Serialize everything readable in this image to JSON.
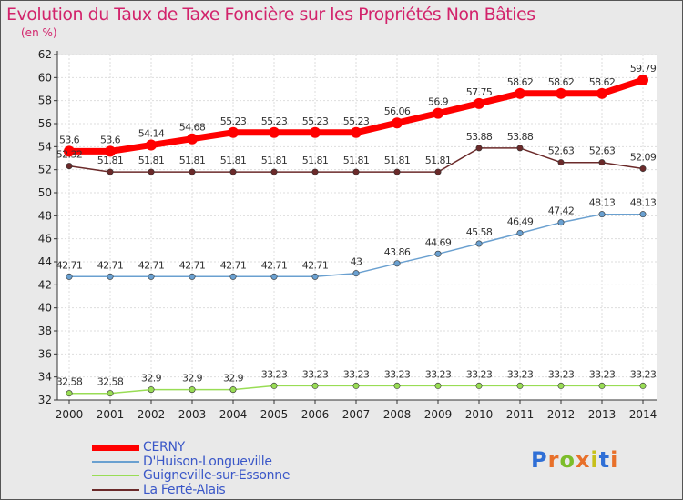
{
  "header": {
    "title": "Evolution du Taux de Taxe Foncière sur les Propriétés Non Bâties",
    "subtitle": "(en %)"
  },
  "logo": {
    "letters": [
      "P",
      "r",
      "o",
      "x",
      "i",
      "t",
      "i"
    ],
    "colors": [
      "#2f6fd6",
      "#e8702a",
      "#7cbd2a",
      "#e8702a",
      "#c7c01a",
      "#2f6fd6",
      "#e8702a"
    ]
  },
  "chart_data": {
    "type": "line",
    "title": "Evolution du Taux de Taxe Foncière sur les Propriétés Non Bâties",
    "ylabel": "(en %)",
    "ylim": [
      32,
      62
    ],
    "yticks": [
      32,
      34,
      36,
      38,
      40,
      42,
      44,
      46,
      48,
      50,
      52,
      54,
      56,
      58,
      60,
      62
    ],
    "x": [
      2000,
      2001,
      2002,
      2003,
      2004,
      2005,
      2006,
      2007,
      2008,
      2009,
      2010,
      2011,
      2012,
      2013,
      2014
    ],
    "legend_position": "bottom-left",
    "series": [
      {
        "name": "CERNY",
        "color": "#ff0000",
        "values": [
          53.6,
          53.6,
          54.14,
          54.68,
          55.23,
          55.23,
          55.23,
          55.23,
          56.06,
          56.9,
          57.75,
          58.62,
          58.62,
          58.62,
          59.79
        ],
        "labels": [
          "53.6",
          "53.6",
          "54.14",
          "54.68",
          "55.23",
          "55.23",
          "55.23",
          "55.23",
          "56.06",
          "56.9",
          "57.75",
          "58.62",
          "58.62",
          "58.62",
          "59.79"
        ]
      },
      {
        "name": "D'Huison-Longueville",
        "color": "#6aa0d0",
        "values": [
          42.71,
          42.71,
          42.71,
          42.71,
          42.71,
          42.71,
          42.71,
          43,
          43.86,
          44.69,
          45.58,
          46.49,
          47.42,
          48.13,
          48.13
        ],
        "labels": [
          "42.71",
          "42.71",
          "42.71",
          "42.71",
          "42.71",
          "42.71",
          "42.71",
          "43",
          "43.86",
          "44.69",
          "45.58",
          "46.49",
          "47.42",
          "48.13",
          "48.13"
        ]
      },
      {
        "name": "Guigneville-sur-Essonne",
        "color": "#99dd55",
        "values": [
          32.58,
          32.58,
          32.9,
          32.9,
          32.9,
          33.23,
          33.23,
          33.23,
          33.23,
          33.23,
          33.23,
          33.23,
          33.23,
          33.23,
          33.23
        ],
        "labels": [
          "32.58",
          "32.58",
          "32.9",
          "32.9",
          "32.9",
          "33.23",
          "33.23",
          "33.23",
          "33.23",
          "33.23",
          "33.23",
          "33.23",
          "33.23",
          "33.23",
          "33.23"
        ]
      },
      {
        "name": "La Ferté-Alais",
        "color": "#6b2a2a",
        "values": [
          52.32,
          51.81,
          51.81,
          51.81,
          51.81,
          51.81,
          51.81,
          51.81,
          51.81,
          51.81,
          53.88,
          53.88,
          52.63,
          52.63,
          52.09
        ],
        "labels": [
          "52.32",
          "51.81",
          "51.81",
          "51.81",
          "51.81",
          "51.81",
          "51.81",
          "51.81",
          "51.81",
          "51.81",
          "53.88",
          "53.88",
          "52.63",
          "52.63",
          "52.09"
        ]
      }
    ]
  }
}
